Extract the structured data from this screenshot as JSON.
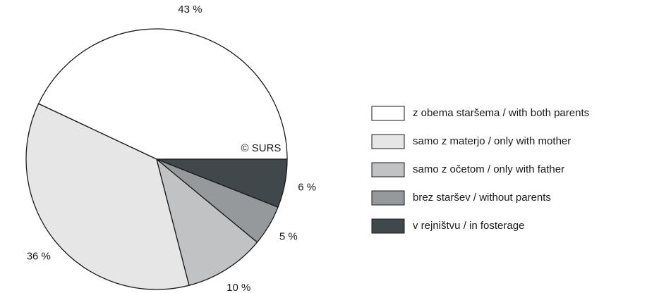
{
  "chart_data": {
    "type": "pie",
    "categories": [
      "z obema staršema / with both parents",
      "samo z materjo / only with mother",
      "samo z očetom / only with father",
      "brez staršev / without parents",
      "v rejništvu / in fosterage"
    ],
    "values": [
      43,
      36,
      10,
      5,
      6
    ],
    "value_labels": [
      "43 %",
      "36 %",
      "10 %",
      "5 %",
      "6 %"
    ],
    "colors": [
      "#ffffff",
      "#e6e6e6",
      "#c0c2c4",
      "#96999c",
      "#41484c"
    ],
    "note": "© SURS",
    "legend": "right"
  }
}
